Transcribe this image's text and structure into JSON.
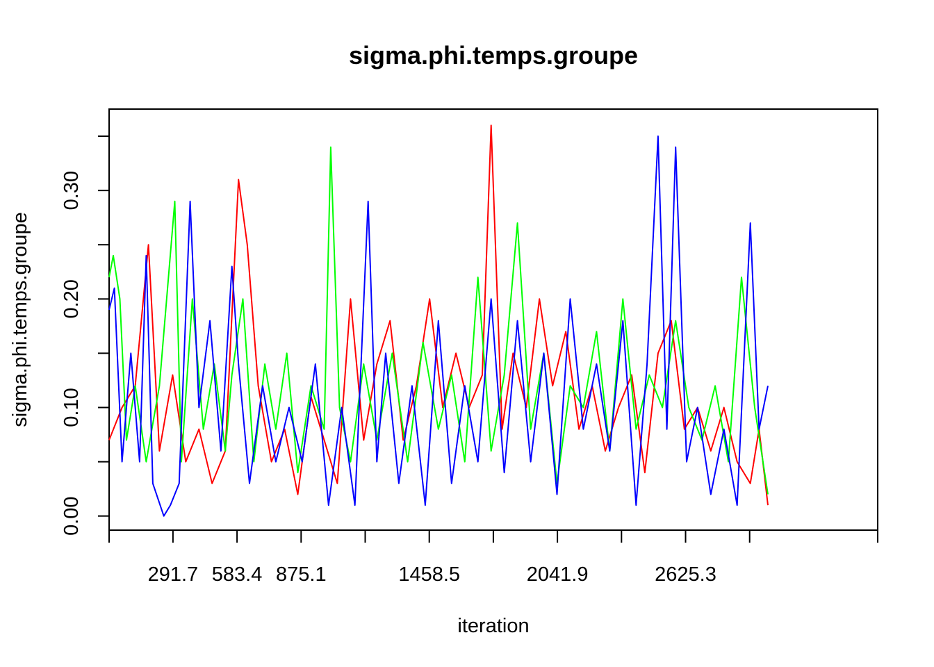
{
  "chart_data": {
    "type": "line",
    "title": "sigma.phi.temps.groupe",
    "xlabel": "iteration",
    "ylabel": "sigma.phi.temps.groupe",
    "xlim": [
      1,
      3500
    ],
    "ylim": [
      -0.013,
      0.375
    ],
    "x_ticks": [
      1,
      291.7,
      583.4,
      875.1,
      1166.8,
      1458.5,
      1750.2,
      2041.9,
      2333.6,
      2625.3,
      2917,
      3500
    ],
    "x_tick_labels": [
      "",
      "291.7",
      "583.4",
      "875.1",
      "",
      "1458.5",
      "",
      "2041.9",
      "",
      "2625.3",
      "",
      ""
    ],
    "y_ticks": [
      0.0,
      0.05,
      0.1,
      0.15,
      0.2,
      0.25,
      0.3,
      0.35
    ],
    "y_tick_labels": [
      "0.00",
      "",
      "0.10",
      "",
      "0.20",
      "",
      "0.30",
      ""
    ],
    "grid": false,
    "legend": "none",
    "series": [
      {
        "color": "#ff0000",
        "x": [
          1,
          60,
          120,
          180,
          230,
          290,
          350,
          410,
          470,
          530,
          590,
          630,
          680,
          740,
          800,
          860,
          920,
          980,
          1040,
          1100,
          1160,
          1220,
          1280,
          1340,
          1400,
          1460,
          1520,
          1580,
          1640,
          1700,
          1740,
          1790,
          1840,
          1900,
          1960,
          2020,
          2080,
          2140,
          2200,
          2260,
          2320,
          2380,
          2440,
          2500,
          2560,
          2620,
          2680,
          2740,
          2800,
          2860,
          2920,
          2960,
          3000
        ],
        "values": [
          0.07,
          0.1,
          0.12,
          0.25,
          0.06,
          0.13,
          0.05,
          0.08,
          0.03,
          0.06,
          0.31,
          0.25,
          0.12,
          0.05,
          0.08,
          0.02,
          0.11,
          0.07,
          0.03,
          0.2,
          0.07,
          0.14,
          0.18,
          0.07,
          0.12,
          0.2,
          0.1,
          0.15,
          0.1,
          0.13,
          0.36,
          0.08,
          0.15,
          0.1,
          0.2,
          0.12,
          0.17,
          0.08,
          0.12,
          0.06,
          0.1,
          0.13,
          0.04,
          0.15,
          0.18,
          0.08,
          0.1,
          0.06,
          0.1,
          0.05,
          0.03,
          0.08,
          0.01
        ]
      },
      {
        "color": "#00ff00",
        "x": [
          1,
          20,
          50,
          80,
          120,
          170,
          230,
          300,
          330,
          380,
          430,
          480,
          530,
          560,
          610,
          660,
          710,
          760,
          810,
          860,
          920,
          980,
          1010,
          1050,
          1100,
          1160,
          1220,
          1290,
          1360,
          1430,
          1500,
          1560,
          1620,
          1680,
          1740,
          1800,
          1860,
          1920,
          1980,
          2040,
          2100,
          2160,
          2220,
          2280,
          2340,
          2400,
          2460,
          2520,
          2580,
          2640,
          2700,
          2760,
          2820,
          2880,
          2940,
          3000
        ],
        "values": [
          0.22,
          0.24,
          0.2,
          0.07,
          0.12,
          0.05,
          0.12,
          0.29,
          0.05,
          0.2,
          0.08,
          0.14,
          0.06,
          0.13,
          0.2,
          0.05,
          0.14,
          0.08,
          0.15,
          0.04,
          0.12,
          0.08,
          0.34,
          0.1,
          0.05,
          0.14,
          0.07,
          0.15,
          0.05,
          0.16,
          0.08,
          0.13,
          0.05,
          0.22,
          0.06,
          0.13,
          0.27,
          0.08,
          0.15,
          0.03,
          0.12,
          0.1,
          0.17,
          0.06,
          0.2,
          0.08,
          0.13,
          0.1,
          0.18,
          0.1,
          0.07,
          0.12,
          0.05,
          0.22,
          0.1,
          0.02
        ]
      },
      {
        "color": "#0000ff",
        "x": [
          1,
          25,
          60,
          100,
          140,
          170,
          200,
          250,
          280,
          320,
          370,
          410,
          460,
          510,
          560,
          590,
          640,
          700,
          760,
          820,
          880,
          940,
          1000,
          1060,
          1120,
          1180,
          1220,
          1260,
          1320,
          1380,
          1440,
          1500,
          1560,
          1620,
          1680,
          1740,
          1800,
          1860,
          1920,
          1980,
          2040,
          2100,
          2160,
          2220,
          2280,
          2340,
          2400,
          2450,
          2500,
          2540,
          2580,
          2630,
          2680,
          2740,
          2800,
          2860,
          2920,
          2960,
          3000
        ],
        "values": [
          0.19,
          0.21,
          0.05,
          0.15,
          0.05,
          0.24,
          0.03,
          0.0,
          0.01,
          0.03,
          0.29,
          0.1,
          0.18,
          0.06,
          0.23,
          0.14,
          0.03,
          0.12,
          0.05,
          0.1,
          0.05,
          0.14,
          0.01,
          0.1,
          0.01,
          0.29,
          0.05,
          0.15,
          0.03,
          0.12,
          0.01,
          0.18,
          0.03,
          0.12,
          0.05,
          0.2,
          0.04,
          0.18,
          0.05,
          0.15,
          0.02,
          0.2,
          0.08,
          0.14,
          0.06,
          0.18,
          0.01,
          0.14,
          0.35,
          0.08,
          0.34,
          0.05,
          0.1,
          0.02,
          0.08,
          0.01,
          0.27,
          0.08,
          0.12
        ]
      }
    ]
  }
}
